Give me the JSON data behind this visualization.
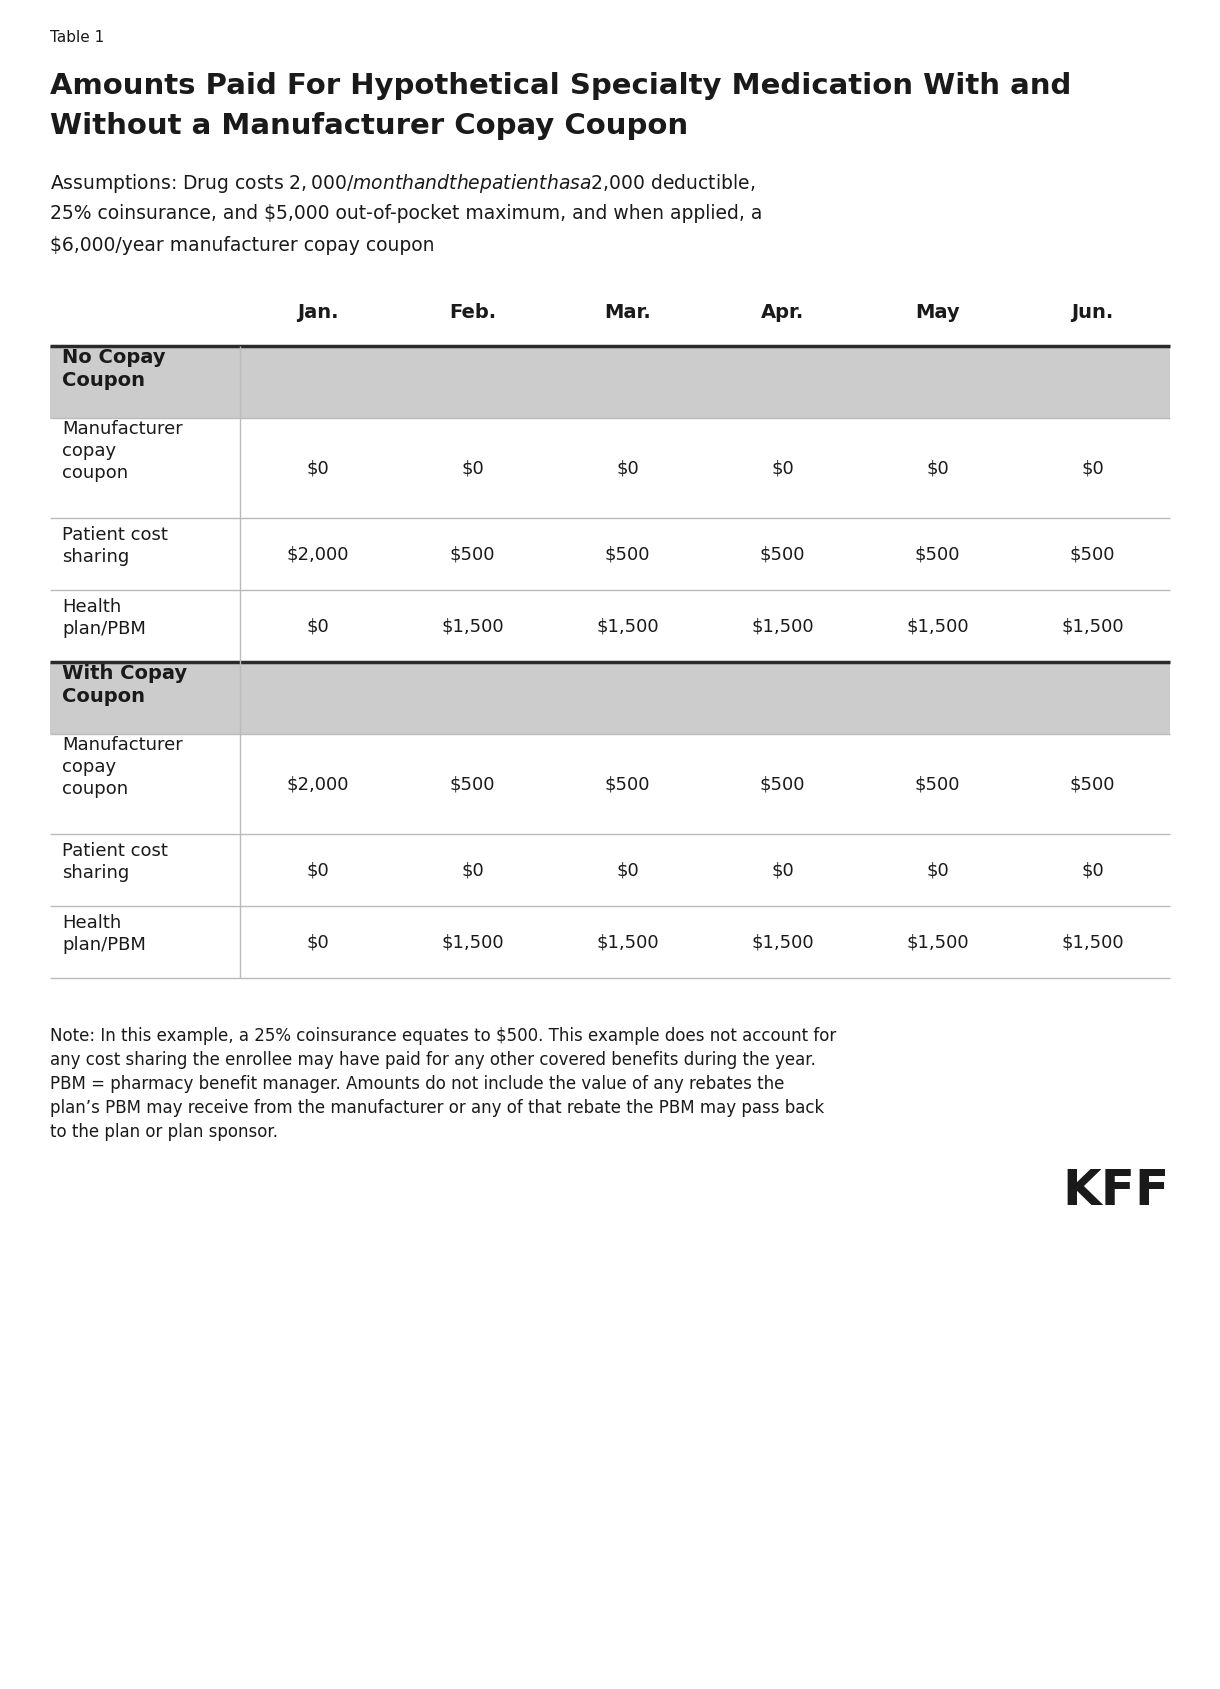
{
  "table_label": "Table 1",
  "title_line1": "Amounts Paid For Hypothetical Specialty Medication With and",
  "title_line2": "Without a Manufacturer Copay Coupon",
  "assumption_line1": "Assumptions: Drug costs $2,000/month and the patient has a $2,000 deductible,",
  "assumption_line2": "25% coinsurance, and $5,000 out-of-pocket maximum, and when applied, a",
  "assumption_line3": "$6,000/year manufacturer copay coupon",
  "col_headers": [
    "Jan.",
    "Feb.",
    "Mar.",
    "Apr.",
    "May",
    "Jun."
  ],
  "section1_header": "No Copay\nCoupon",
  "section1_rows": [
    {
      "label": "Manufacturer\ncopay\ncoupon",
      "values": [
        "$0",
        "$0",
        "$0",
        "$0",
        "$0",
        "$0"
      ]
    },
    {
      "label": "Patient cost\nsharing",
      "values": [
        "$2,000",
        "$500",
        "$500",
        "$500",
        "$500",
        "$500"
      ]
    },
    {
      "label": "Health\nplan/PBM",
      "values": [
        "$0",
        "$1,500",
        "$1,500",
        "$1,500",
        "$1,500",
        "$1,500"
      ]
    }
  ],
  "section2_header": "With Copay\nCoupon",
  "section2_rows": [
    {
      "label": "Manufacturer\ncopay\ncoupon",
      "values": [
        "$2,000",
        "$500",
        "$500",
        "$500",
        "$500",
        "$500"
      ]
    },
    {
      "label": "Patient cost\nsharing",
      "values": [
        "$0",
        "$0",
        "$0",
        "$0",
        "$0",
        "$0"
      ]
    },
    {
      "label": "Health\nplan/PBM",
      "values": [
        "$0",
        "$1,500",
        "$1,500",
        "$1,500",
        "$1,500",
        "$1,500"
      ]
    }
  ],
  "note_text_lines": [
    "Note: In this example, a 25% coinsurance equates to $500. This example does not account for",
    "any cost sharing the enrollee may have paid for any other covered benefits during the year.",
    "PBM = pharmacy benefit manager. Amounts do not include the value of any rebates the",
    "plan’s PBM may receive from the manufacturer or any of that rebate the PBM may pass back",
    "to the plan or plan sponsor."
  ],
  "kff_logo": "KFF",
  "bg_color": "#ffffff",
  "section_header_bg": "#cccccc",
  "thick_line_color": "#2a2a2a",
  "separator_color": "#bbbbbb",
  "text_color": "#1a1a1a"
}
